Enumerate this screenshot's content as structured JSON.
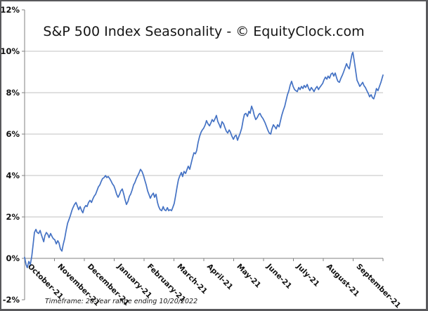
{
  "chart": {
    "background": "#ffffff",
    "frame_border_color": "#59595c",
    "line_color": "#4472c4",
    "gridline_color": "#c2c2c2",
    "axis_color": "#808080",
    "tick_text_color": "#111111",
    "title_text_color": "#151515",
    "footnote_text_color": "#1a1a1a"
  },
  "chart_data": {
    "type": "line",
    "title": "S&P 500 Index Seasonality - © EquityClock.com",
    "footnote": "Timeframe: 20-Year range ending 10/20/2022",
    "xlabel": "",
    "ylabel": "",
    "legend": "none",
    "grid": "horizontal-only",
    "y_axis": {
      "min": -2,
      "max": 12,
      "unit": "%",
      "tick_step": 2,
      "tick_labels": [
        "12%",
        "10%",
        "8%",
        "6%",
        "4%",
        "2%",
        "0%",
        "-2%"
      ],
      "gridlines_at": [
        10,
        8,
        6,
        4,
        2
      ],
      "baseline_value": 0
    },
    "x_axis": {
      "labels": [
        "October-21",
        "November-21",
        "December-21",
        "January-21",
        "February-21",
        "March-21",
        "April-21",
        "May-21",
        "June-21",
        "July-21",
        "August-21",
        "September-21"
      ],
      "range_months": [
        0,
        12
      ]
    },
    "series": [
      {
        "name": "S&P 500 Index Seasonality",
        "color": "#4472c4",
        "points": [
          [
            0,
            0.05
          ],
          [
            0.05,
            -0.3
          ],
          [
            0.09,
            -0.45
          ],
          [
            0.14,
            -0.15
          ],
          [
            0.19,
            -0.3
          ],
          [
            0.24,
            0.1
          ],
          [
            0.28,
            0.6
          ],
          [
            0.33,
            1.25
          ],
          [
            0.38,
            1.4
          ],
          [
            0.42,
            1.25
          ],
          [
            0.47,
            1.2
          ],
          [
            0.52,
            1.35
          ],
          [
            0.56,
            1.15
          ],
          [
            0.64,
            0.8
          ],
          [
            0.68,
            1.1
          ],
          [
            0.73,
            1.25
          ],
          [
            0.78,
            1.15
          ],
          [
            0.82,
            1.0
          ],
          [
            0.87,
            1.2
          ],
          [
            0.92,
            1.05
          ],
          [
            0.96,
            0.95
          ],
          [
            1.01,
            0.9
          ],
          [
            1.06,
            0.7
          ],
          [
            1.11,
            0.85
          ],
          [
            1.15,
            0.75
          ],
          [
            1.2,
            0.45
          ],
          [
            1.25,
            0.35
          ],
          [
            1.29,
            0.65
          ],
          [
            1.34,
            0.95
          ],
          [
            1.39,
            1.35
          ],
          [
            1.44,
            1.7
          ],
          [
            1.48,
            1.85
          ],
          [
            1.53,
            2.05
          ],
          [
            1.58,
            2.3
          ],
          [
            1.62,
            2.45
          ],
          [
            1.67,
            2.6
          ],
          [
            1.72,
            2.7
          ],
          [
            1.76,
            2.55
          ],
          [
            1.81,
            2.35
          ],
          [
            1.86,
            2.5
          ],
          [
            1.91,
            2.3
          ],
          [
            1.95,
            2.2
          ],
          [
            2.0,
            2.45
          ],
          [
            2.05,
            2.55
          ],
          [
            2.09,
            2.5
          ],
          [
            2.14,
            2.7
          ],
          [
            2.19,
            2.8
          ],
          [
            2.24,
            2.7
          ],
          [
            2.28,
            2.85
          ],
          [
            2.33,
            3.0
          ],
          [
            2.38,
            3.1
          ],
          [
            2.42,
            3.25
          ],
          [
            2.47,
            3.45
          ],
          [
            2.52,
            3.55
          ],
          [
            2.56,
            3.7
          ],
          [
            2.61,
            3.85
          ],
          [
            2.66,
            3.9
          ],
          [
            2.71,
            4.0
          ],
          [
            2.75,
            3.9
          ],
          [
            2.8,
            3.95
          ],
          [
            2.85,
            3.85
          ],
          [
            2.89,
            3.75
          ],
          [
            2.94,
            3.6
          ],
          [
            2.99,
            3.5
          ],
          [
            3.04,
            3.3
          ],
          [
            3.08,
            3.1
          ],
          [
            3.13,
            2.95
          ],
          [
            3.18,
            3.1
          ],
          [
            3.22,
            3.25
          ],
          [
            3.27,
            3.35
          ],
          [
            3.32,
            3.1
          ],
          [
            3.36,
            2.85
          ],
          [
            3.41,
            2.6
          ],
          [
            3.46,
            2.75
          ],
          [
            3.51,
            3.0
          ],
          [
            3.55,
            3.1
          ],
          [
            3.6,
            3.3
          ],
          [
            3.65,
            3.55
          ],
          [
            3.69,
            3.65
          ],
          [
            3.74,
            3.85
          ],
          [
            3.79,
            4.0
          ],
          [
            3.84,
            4.15
          ],
          [
            3.88,
            4.3
          ],
          [
            3.93,
            4.2
          ],
          [
            3.98,
            4.0
          ],
          [
            4.02,
            3.8
          ],
          [
            4.07,
            3.55
          ],
          [
            4.12,
            3.25
          ],
          [
            4.16,
            3.1
          ],
          [
            4.21,
            2.9
          ],
          [
            4.26,
            3.05
          ],
          [
            4.31,
            3.15
          ],
          [
            4.35,
            2.95
          ],
          [
            4.4,
            3.1
          ],
          [
            4.45,
            2.7
          ],
          [
            4.49,
            2.5
          ],
          [
            4.54,
            2.35
          ],
          [
            4.59,
            2.3
          ],
          [
            4.64,
            2.5
          ],
          [
            4.68,
            2.35
          ],
          [
            4.73,
            2.3
          ],
          [
            4.78,
            2.45
          ],
          [
            4.82,
            2.3
          ],
          [
            4.87,
            2.35
          ],
          [
            4.92,
            2.3
          ],
          [
            4.96,
            2.45
          ],
          [
            5.01,
            2.65
          ],
          [
            5.06,
            3.05
          ],
          [
            5.11,
            3.5
          ],
          [
            5.15,
            3.8
          ],
          [
            5.2,
            4.0
          ],
          [
            5.25,
            4.15
          ],
          [
            5.29,
            3.95
          ],
          [
            5.34,
            4.2
          ],
          [
            5.39,
            4.1
          ],
          [
            5.44,
            4.3
          ],
          [
            5.48,
            4.45
          ],
          [
            5.53,
            4.3
          ],
          [
            5.58,
            4.6
          ],
          [
            5.62,
            4.85
          ],
          [
            5.67,
            5.1
          ],
          [
            5.72,
            5.05
          ],
          [
            5.76,
            5.2
          ],
          [
            5.81,
            5.6
          ],
          [
            5.86,
            5.9
          ],
          [
            5.91,
            6.1
          ],
          [
            5.95,
            6.2
          ],
          [
            6.0,
            6.3
          ],
          [
            6.05,
            6.45
          ],
          [
            6.09,
            6.65
          ],
          [
            6.14,
            6.5
          ],
          [
            6.19,
            6.4
          ],
          [
            6.24,
            6.55
          ],
          [
            6.28,
            6.7
          ],
          [
            6.33,
            6.6
          ],
          [
            6.38,
            6.75
          ],
          [
            6.42,
            6.9
          ],
          [
            6.47,
            6.6
          ],
          [
            6.52,
            6.45
          ],
          [
            6.56,
            6.3
          ],
          [
            6.61,
            6.6
          ],
          [
            6.66,
            6.5
          ],
          [
            6.71,
            6.3
          ],
          [
            6.75,
            6.15
          ],
          [
            6.8,
            6.05
          ],
          [
            6.85,
            6.2
          ],
          [
            6.89,
            6.1
          ],
          [
            6.94,
            5.9
          ],
          [
            6.99,
            5.75
          ],
          [
            7.04,
            5.9
          ],
          [
            7.08,
            5.95
          ],
          [
            7.13,
            5.7
          ],
          [
            7.18,
            5.9
          ],
          [
            7.22,
            6.05
          ],
          [
            7.27,
            6.3
          ],
          [
            7.32,
            6.7
          ],
          [
            7.36,
            6.95
          ],
          [
            7.41,
            7.0
          ],
          [
            7.46,
            6.85
          ],
          [
            7.51,
            7.1
          ],
          [
            7.55,
            7.0
          ],
          [
            7.6,
            7.35
          ],
          [
            7.65,
            7.15
          ],
          [
            7.69,
            6.9
          ],
          [
            7.74,
            6.7
          ],
          [
            7.79,
            6.8
          ],
          [
            7.84,
            6.95
          ],
          [
            7.88,
            7.0
          ],
          [
            7.93,
            6.85
          ],
          [
            7.98,
            6.75
          ],
          [
            8.05,
            6.55
          ],
          [
            8.09,
            6.4
          ],
          [
            8.14,
            6.2
          ],
          [
            8.19,
            6.05
          ],
          [
            8.24,
            6.0
          ],
          [
            8.28,
            6.25
          ],
          [
            8.33,
            6.45
          ],
          [
            8.38,
            6.35
          ],
          [
            8.42,
            6.25
          ],
          [
            8.47,
            6.45
          ],
          [
            8.52,
            6.35
          ],
          [
            8.56,
            6.6
          ],
          [
            8.61,
            6.9
          ],
          [
            8.66,
            7.15
          ],
          [
            8.71,
            7.35
          ],
          [
            8.75,
            7.6
          ],
          [
            8.8,
            7.9
          ],
          [
            8.85,
            8.1
          ],
          [
            8.89,
            8.35
          ],
          [
            8.94,
            8.55
          ],
          [
            8.99,
            8.3
          ],
          [
            9.04,
            8.15
          ],
          [
            9.08,
            8.1
          ],
          [
            9.13,
            8.05
          ],
          [
            9.18,
            8.25
          ],
          [
            9.22,
            8.15
          ],
          [
            9.27,
            8.3
          ],
          [
            9.32,
            8.2
          ],
          [
            9.36,
            8.35
          ],
          [
            9.41,
            8.25
          ],
          [
            9.46,
            8.4
          ],
          [
            9.51,
            8.2
          ],
          [
            9.55,
            8.1
          ],
          [
            9.6,
            8.25
          ],
          [
            9.65,
            8.15
          ],
          [
            9.69,
            8.05
          ],
          [
            9.74,
            8.2
          ],
          [
            9.79,
            8.3
          ],
          [
            9.84,
            8.15
          ],
          [
            9.88,
            8.25
          ],
          [
            9.93,
            8.35
          ],
          [
            9.98,
            8.45
          ],
          [
            10.02,
            8.6
          ],
          [
            10.07,
            8.75
          ],
          [
            10.12,
            8.65
          ],
          [
            10.16,
            8.8
          ],
          [
            10.21,
            8.7
          ],
          [
            10.26,
            8.9
          ],
          [
            10.31,
            8.95
          ],
          [
            10.35,
            8.8
          ],
          [
            10.4,
            8.95
          ],
          [
            10.45,
            8.7
          ],
          [
            10.49,
            8.55
          ],
          [
            10.54,
            8.5
          ],
          [
            10.59,
            8.7
          ],
          [
            10.64,
            8.85
          ],
          [
            10.68,
            9.0
          ],
          [
            10.73,
            9.2
          ],
          [
            10.78,
            9.4
          ],
          [
            10.82,
            9.25
          ],
          [
            10.87,
            9.15
          ],
          [
            10.92,
            9.55
          ],
          [
            10.96,
            9.85
          ],
          [
            10.99,
            9.95
          ],
          [
            11.04,
            9.5
          ],
          [
            11.08,
            9.1
          ],
          [
            11.13,
            8.6
          ],
          [
            11.18,
            8.45
          ],
          [
            11.22,
            8.3
          ],
          [
            11.27,
            8.4
          ],
          [
            11.32,
            8.5
          ],
          [
            11.36,
            8.35
          ],
          [
            11.41,
            8.25
          ],
          [
            11.46,
            8.1
          ],
          [
            11.51,
            7.95
          ],
          [
            11.55,
            7.8
          ],
          [
            11.6,
            7.9
          ],
          [
            11.65,
            7.75
          ],
          [
            11.69,
            7.7
          ],
          [
            11.74,
            7.95
          ],
          [
            11.78,
            8.2
          ],
          [
            11.83,
            8.1
          ],
          [
            11.88,
            8.3
          ],
          [
            11.93,
            8.5
          ],
          [
            11.97,
            8.7
          ],
          [
            12.0,
            8.85
          ]
        ]
      }
    ]
  }
}
